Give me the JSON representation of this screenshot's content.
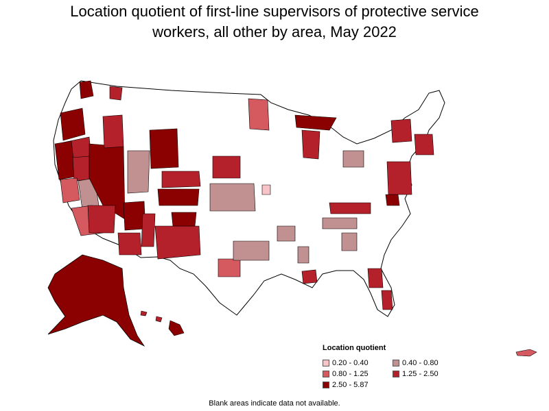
{
  "title": {
    "line1": "Location quotient of first-line supervisors of protective service",
    "line2": "workers, all other by area, May 2022"
  },
  "legend": {
    "title": "Location quotient",
    "items": [
      {
        "label": "0.20 - 0.40",
        "color": "#f7c4c8"
      },
      {
        "label": "0.40 - 0.80",
        "color": "#c19091"
      },
      {
        "label": "0.80 - 1.25",
        "color": "#d45a60"
      },
      {
        "label": "1.25 - 2.50",
        "color": "#b5212b"
      },
      {
        "label": "2.50 - 5.87",
        "color": "#8b0000"
      }
    ]
  },
  "footnote": "Blank areas indicate data not available.",
  "colors": {
    "blank": "#ffffff",
    "border": "#000000"
  }
}
